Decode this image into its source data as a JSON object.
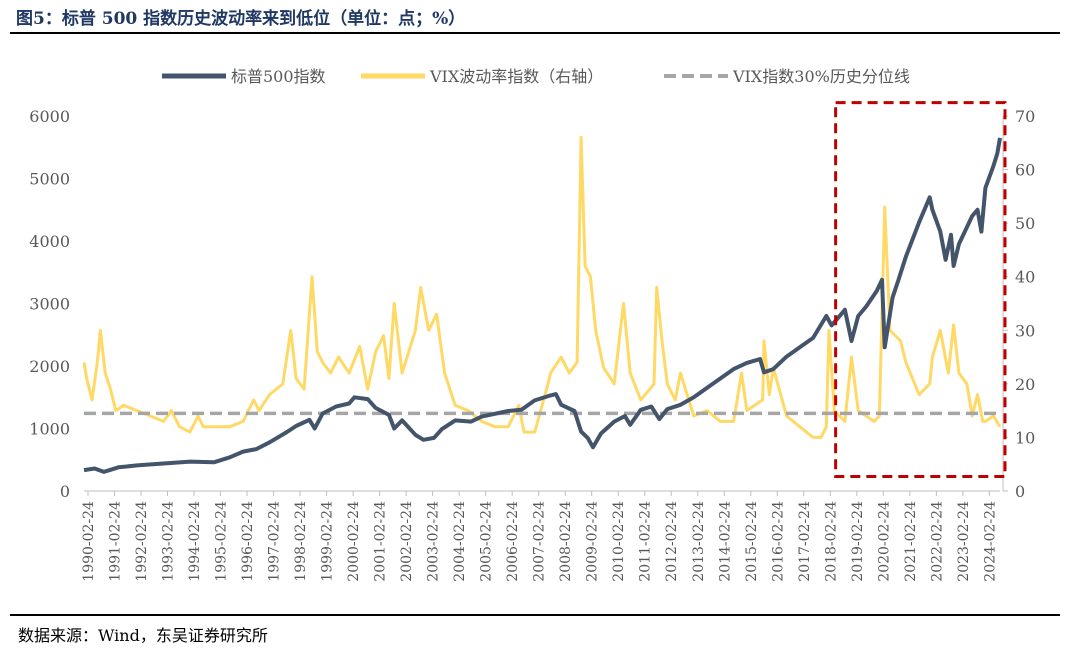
{
  "title": "图5：标普 500 指数历史波动率来到低位（单位：点；%）",
  "source": "数据来源：Wind，东吴证券研究所",
  "chart_data": {
    "type": "line",
    "x_tick_labels": [
      "1990-02-24",
      "1991-02-24",
      "1992-02-24",
      "1993-02-24",
      "1994-02-24",
      "1995-02-24",
      "1996-02-24",
      "1997-02-24",
      "1998-02-24",
      "1999-02-24",
      "2000-02-24",
      "2001-02-24",
      "2002-02-24",
      "2003-02-24",
      "2004-02-24",
      "2005-02-24",
      "2006-02-24",
      "2007-02-24",
      "2008-02-24",
      "2009-02-24",
      "2010-02-24",
      "2011-02-24",
      "2012-02-24",
      "2013-02-24",
      "2014-02-24",
      "2015-02-24",
      "2016-02-24",
      "2017-02-24",
      "2018-02-24",
      "2019-02-24",
      "2020-02-24",
      "2021-02-24",
      "2022-02-24",
      "2023-02-24",
      "2024-02-24"
    ],
    "x_range": [
      1990.0,
      2024.55
    ],
    "y_left": {
      "range": [
        0,
        6000
      ],
      "ticks": [
        "0",
        "1000",
        "2000",
        "3000",
        "4000",
        "5000",
        "6000"
      ]
    },
    "y_right": {
      "range": [
        0,
        70
      ],
      "ticks": [
        "0",
        "10",
        "20",
        "30",
        "40",
        "50",
        "60",
        "70"
      ]
    },
    "colors": {
      "sp500": "#44546a",
      "vix": "#ffd966",
      "threshold": "#a6a6a6",
      "highlight": "#c00000"
    },
    "series": [
      {
        "name": "标普500指数",
        "axis": "left",
        "points": [
          [
            1990.0,
            335
          ],
          [
            1990.4,
            360
          ],
          [
            1990.75,
            305
          ],
          [
            1991.0,
            340
          ],
          [
            1991.3,
            380
          ],
          [
            1992.0,
            410
          ],
          [
            1993.0,
            440
          ],
          [
            1994.0,
            470
          ],
          [
            1994.9,
            460
          ],
          [
            1995.5,
            540
          ],
          [
            1996.0,
            630
          ],
          [
            1996.5,
            670
          ],
          [
            1997.0,
            780
          ],
          [
            1997.6,
            930
          ],
          [
            1998.0,
            1040
          ],
          [
            1998.5,
            1140
          ],
          [
            1998.7,
            1000
          ],
          [
            1999.0,
            1240
          ],
          [
            1999.5,
            1350
          ],
          [
            2000.0,
            1400
          ],
          [
            2000.2,
            1500
          ],
          [
            2000.7,
            1470
          ],
          [
            2001.0,
            1330
          ],
          [
            2001.5,
            1220
          ],
          [
            2001.7,
            1000
          ],
          [
            2002.0,
            1130
          ],
          [
            2002.5,
            900
          ],
          [
            2002.8,
            820
          ],
          [
            2003.2,
            850
          ],
          [
            2003.5,
            990
          ],
          [
            2004.0,
            1130
          ],
          [
            2004.6,
            1110
          ],
          [
            2005.0,
            1190
          ],
          [
            2006.0,
            1280
          ],
          [
            2006.5,
            1300
          ],
          [
            2007.0,
            1450
          ],
          [
            2007.6,
            1530
          ],
          [
            2007.8,
            1550
          ],
          [
            2008.0,
            1380
          ],
          [
            2008.5,
            1280
          ],
          [
            2008.75,
            950
          ],
          [
            2009.0,
            850
          ],
          [
            2009.2,
            700
          ],
          [
            2009.5,
            920
          ],
          [
            2010.0,
            1110
          ],
          [
            2010.4,
            1200
          ],
          [
            2010.6,
            1060
          ],
          [
            2011.0,
            1300
          ],
          [
            2011.4,
            1350
          ],
          [
            2011.7,
            1150
          ],
          [
            2012.0,
            1310
          ],
          [
            2012.5,
            1380
          ],
          [
            2013.0,
            1500
          ],
          [
            2013.5,
            1650
          ],
          [
            2014.0,
            1800
          ],
          [
            2014.5,
            1950
          ],
          [
            2015.0,
            2050
          ],
          [
            2015.5,
            2110
          ],
          [
            2015.65,
            1900
          ],
          [
            2016.0,
            1950
          ],
          [
            2016.5,
            2150
          ],
          [
            2017.0,
            2300
          ],
          [
            2017.5,
            2450
          ],
          [
            2018.0,
            2800
          ],
          [
            2018.2,
            2650
          ],
          [
            2018.7,
            2900
          ],
          [
            2018.95,
            2400
          ],
          [
            2019.2,
            2800
          ],
          [
            2019.5,
            2950
          ],
          [
            2019.9,
            3200
          ],
          [
            2020.1,
            3380
          ],
          [
            2020.2,
            2300
          ],
          [
            2020.5,
            3100
          ],
          [
            2020.7,
            3350
          ],
          [
            2021.0,
            3750
          ],
          [
            2021.5,
            4300
          ],
          [
            2021.9,
            4700
          ],
          [
            2022.0,
            4500
          ],
          [
            2022.3,
            4150
          ],
          [
            2022.5,
            3700
          ],
          [
            2022.7,
            4100
          ],
          [
            2022.8,
            3600
          ],
          [
            2023.0,
            3950
          ],
          [
            2023.5,
            4400
          ],
          [
            2023.7,
            4500
          ],
          [
            2023.85,
            4150
          ],
          [
            2024.0,
            4850
          ],
          [
            2024.3,
            5200
          ],
          [
            2024.45,
            5400
          ],
          [
            2024.55,
            5650
          ]
        ]
      },
      {
        "name": "VIX波动率指数（右轴）",
        "axis": "right",
        "points": [
          [
            1990.0,
            24
          ],
          [
            1990.1,
            21
          ],
          [
            1990.3,
            17
          ],
          [
            1990.5,
            24
          ],
          [
            1990.62,
            30
          ],
          [
            1990.8,
            22
          ],
          [
            1991.0,
            19
          ],
          [
            1991.2,
            15
          ],
          [
            1991.5,
            16
          ],
          [
            1992.0,
            15
          ],
          [
            1992.5,
            14
          ],
          [
            1993.0,
            13
          ],
          [
            1993.3,
            15
          ],
          [
            1993.6,
            12
          ],
          [
            1994.0,
            11
          ],
          [
            1994.3,
            14
          ],
          [
            1994.5,
            12
          ],
          [
            1995.0,
            12
          ],
          [
            1995.5,
            12
          ],
          [
            1996.0,
            13
          ],
          [
            1996.4,
            17
          ],
          [
            1996.6,
            15
          ],
          [
            1997.0,
            18
          ],
          [
            1997.5,
            20
          ],
          [
            1997.8,
            30
          ],
          [
            1998.0,
            21
          ],
          [
            1998.3,
            19
          ],
          [
            1998.6,
            40
          ],
          [
            1998.8,
            26
          ],
          [
            1999.0,
            24
          ],
          [
            1999.3,
            22
          ],
          [
            1999.6,
            25
          ],
          [
            2000.0,
            22
          ],
          [
            2000.4,
            27
          ],
          [
            2000.7,
            19
          ],
          [
            2001.0,
            26
          ],
          [
            2001.3,
            29
          ],
          [
            2001.5,
            21
          ],
          [
            2001.7,
            35
          ],
          [
            2002.0,
            22
          ],
          [
            2002.5,
            30
          ],
          [
            2002.7,
            38
          ],
          [
            2003.0,
            30
          ],
          [
            2003.3,
            33
          ],
          [
            2003.6,
            22
          ],
          [
            2004.0,
            16
          ],
          [
            2004.5,
            15
          ],
          [
            2005.0,
            13
          ],
          [
            2005.5,
            12
          ],
          [
            2006.0,
            12
          ],
          [
            2006.4,
            16
          ],
          [
            2006.6,
            11
          ],
          [
            2007.0,
            11
          ],
          [
            2007.5,
            20
          ],
          [
            2007.6,
            22
          ],
          [
            2008.0,
            25
          ],
          [
            2008.3,
            22
          ],
          [
            2008.6,
            24
          ],
          [
            2008.75,
            66
          ],
          [
            2008.9,
            42
          ],
          [
            2009.1,
            40
          ],
          [
            2009.3,
            30
          ],
          [
            2009.6,
            23
          ],
          [
            2010.0,
            20
          ],
          [
            2010.35,
            35
          ],
          [
            2010.6,
            22
          ],
          [
            2011.0,
            17
          ],
          [
            2011.5,
            20
          ],
          [
            2011.6,
            38
          ],
          [
            2011.8,
            28
          ],
          [
            2012.0,
            20
          ],
          [
            2012.3,
            17
          ],
          [
            2012.5,
            22
          ],
          [
            2013.0,
            14
          ],
          [
            2013.5,
            15
          ],
          [
            2014.0,
            13
          ],
          [
            2014.5,
            13
          ],
          [
            2014.8,
            22
          ],
          [
            2015.0,
            15
          ],
          [
            2015.6,
            17
          ],
          [
            2015.65,
            28
          ],
          [
            2015.85,
            18
          ],
          [
            2016.0,
            23
          ],
          [
            2016.5,
            14
          ],
          [
            2017.0,
            12
          ],
          [
            2017.5,
            10
          ],
          [
            2017.8,
            10
          ],
          [
            2018.0,
            12
          ],
          [
            2018.1,
            30
          ],
          [
            2018.3,
            15
          ],
          [
            2018.7,
            13
          ],
          [
            2018.95,
            25
          ],
          [
            2019.2,
            15
          ],
          [
            2019.5,
            14
          ],
          [
            2019.8,
            13
          ],
          [
            2020.0,
            14
          ],
          [
            2020.2,
            53
          ],
          [
            2020.4,
            30
          ],
          [
            2020.8,
            28
          ],
          [
            2021.0,
            24
          ],
          [
            2021.5,
            18
          ],
          [
            2021.9,
            20
          ],
          [
            2022.0,
            25
          ],
          [
            2022.3,
            30
          ],
          [
            2022.6,
            22
          ],
          [
            2022.8,
            31
          ],
          [
            2023.0,
            22
          ],
          [
            2023.3,
            20
          ],
          [
            2023.5,
            14
          ],
          [
            2023.7,
            18
          ],
          [
            2023.9,
            13
          ],
          [
            2024.0,
            13
          ],
          [
            2024.3,
            14
          ],
          [
            2024.55,
            12
          ]
        ]
      },
      {
        "name": "VIX指数30%历史分位线",
        "axis": "right",
        "dashed": true,
        "value": 14.5
      }
    ]
  }
}
